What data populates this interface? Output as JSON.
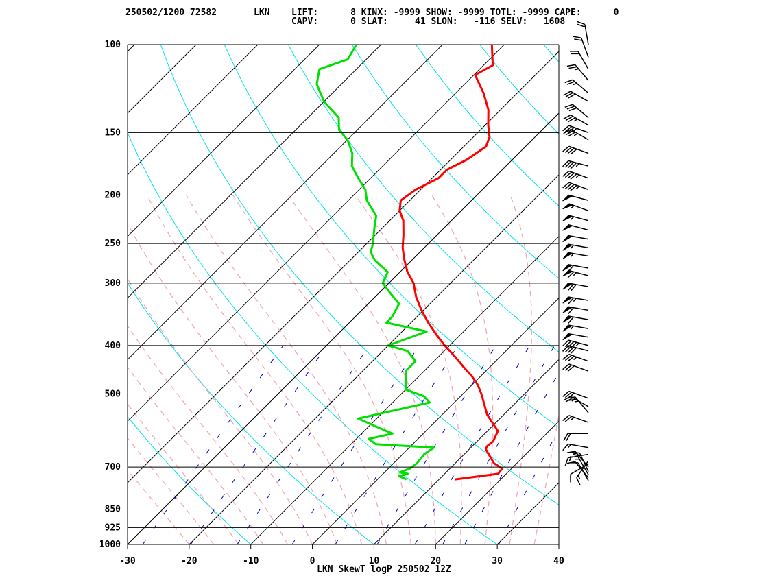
{
  "header": {
    "date_station": "250502/1200 72582",
    "station_id": "LKN",
    "line1": "LIFT:      8 KINX: -9999 SHOW: -9999 TOTL: -9999 CAPE:      0",
    "line2": "CAPV:      0 SLAT:     41 SLON:   -116 SELV:   1608"
  },
  "chart_data": {
    "type": "line",
    "title": "LKN SkewT logP 250502 12Z",
    "x_ticks": [
      -30,
      -20,
      -10,
      0,
      10,
      20,
      30,
      40
    ],
    "xlim": [
      -30,
      40
    ],
    "y_ticks": [
      100,
      150,
      200,
      250,
      300,
      400,
      500,
      700,
      850,
      925,
      1000
    ],
    "ylim": [
      1000,
      100
    ],
    "y_scale": "log",
    "skew": true,
    "colors": {
      "temperature": "#ff0000",
      "dewpoint": "#00e000",
      "dry_adiabats": "#00e6e6",
      "moist_adiabats": "#f4a8b4",
      "mixing_ratio": "#0000cc",
      "isotherms": "#000000",
      "isobars": "#000000",
      "wind_barbs": "#000000"
    },
    "series": [
      {
        "key": "temperature",
        "points": [
          [
            741,
            12.6
          ],
          [
            722,
            18.7
          ],
          [
            717,
            18.6
          ],
          [
            705,
            18.5
          ],
          [
            688,
            16.3
          ],
          [
            645,
            12.7
          ],
          [
            636,
            12.4
          ],
          [
            622,
            12.6
          ],
          [
            593,
            11.7
          ],
          [
            550,
            7.3
          ],
          [
            500,
            3.0
          ],
          [
            480,
            1.0
          ],
          [
            460,
            -1.5
          ],
          [
            440,
            -4.5
          ],
          [
            420,
            -7.5
          ],
          [
            400,
            -10.8
          ],
          [
            380,
            -14.0
          ],
          [
            360,
            -17.2
          ],
          [
            340,
            -20.3
          ],
          [
            320,
            -23.3
          ],
          [
            300,
            -26.0
          ],
          [
            285,
            -28.8
          ],
          [
            270,
            -31.2
          ],
          [
            255,
            -33.5
          ],
          [
            240,
            -35.5
          ],
          [
            225,
            -37.8
          ],
          [
            215,
            -40.0
          ],
          [
            205,
            -41.5
          ],
          [
            195,
            -40.8
          ],
          [
            185,
            -39.0
          ],
          [
            178,
            -39.0
          ],
          [
            170,
            -37.4
          ],
          [
            160,
            -36.4
          ],
          [
            153,
            -37.4
          ],
          [
            145,
            -39.5
          ],
          [
            135,
            -42.0
          ],
          [
            125,
            -45.5
          ],
          [
            115,
            -49.8
          ],
          [
            110,
            -48.5
          ],
          [
            100,
            -52.0
          ]
        ]
      },
      {
        "key": "dewpoint",
        "points": [
          [
            741,
            4.7
          ],
          [
            730,
            3.0
          ],
          [
            722,
            4.0
          ],
          [
            717,
            2.5
          ],
          [
            705,
            3.5
          ],
          [
            688,
            3.8
          ],
          [
            660,
            3.5
          ],
          [
            640,
            4.0
          ],
          [
            630,
            -6.0
          ],
          [
            615,
            -8.0
          ],
          [
            600,
            -5.0
          ],
          [
            580,
            -9.0
          ],
          [
            560,
            -13.0
          ],
          [
            520,
            -4.0
          ],
          [
            505,
            -6.0
          ],
          [
            490,
            -10.0
          ],
          [
            450,
            -13.0
          ],
          [
            430,
            -13.0
          ],
          [
            410,
            -16.0
          ],
          [
            400,
            -20.0
          ],
          [
            375,
            -16.0
          ],
          [
            360,
            -24.0
          ],
          [
            350,
            -24.0
          ],
          [
            330,
            -25.0
          ],
          [
            310,
            -29.0
          ],
          [
            300,
            -31.0
          ],
          [
            285,
            -32.0
          ],
          [
            270,
            -36.0
          ],
          [
            260,
            -38.0
          ],
          [
            250,
            -39.0
          ],
          [
            235,
            -41.0
          ],
          [
            220,
            -43.0
          ],
          [
            205,
            -47.0
          ],
          [
            195,
            -49.0
          ],
          [
            185,
            -52.0
          ],
          [
            175,
            -55.0
          ],
          [
            165,
            -57.0
          ],
          [
            155,
            -60.0
          ],
          [
            148,
            -63.0
          ],
          [
            140,
            -65.0
          ],
          [
            130,
            -70.0
          ],
          [
            120,
            -74.0
          ],
          [
            112,
            -76.0
          ],
          [
            107,
            -73.0
          ],
          [
            100,
            -74.0
          ]
        ]
      }
    ],
    "winds": [
      [
        745,
        330,
        10
      ],
      [
        735,
        320,
        10
      ],
      [
        725,
        330,
        15
      ],
      [
        715,
        335,
        20
      ],
      [
        700,
        320,
        15
      ],
      [
        690,
        240,
        10
      ],
      [
        680,
        215,
        15
      ],
      [
        660,
        260,
        15
      ],
      [
        640,
        280,
        15
      ],
      [
        600,
        270,
        20
      ],
      [
        570,
        290,
        25
      ],
      [
        545,
        320,
        25
      ],
      [
        530,
        300,
        25
      ],
      [
        510,
        290,
        30
      ],
      [
        450,
        290,
        30
      ],
      [
        430,
        290,
        35
      ],
      [
        410,
        285,
        40
      ],
      [
        400,
        285,
        45
      ],
      [
        385,
        280,
        50
      ],
      [
        370,
        280,
        55
      ],
      [
        355,
        280,
        60
      ],
      [
        340,
        280,
        60
      ],
      [
        325,
        280,
        65
      ],
      [
        305,
        280,
        70
      ],
      [
        290,
        285,
        65
      ],
      [
        280,
        280,
        60
      ],
      [
        265,
        280,
        55
      ],
      [
        255,
        280,
        55
      ],
      [
        245,
        280,
        50
      ],
      [
        235,
        285,
        50
      ],
      [
        225,
        285,
        55
      ],
      [
        215,
        290,
        55
      ],
      [
        205,
        285,
        50
      ],
      [
        195,
        290,
        45
      ],
      [
        185,
        290,
        45
      ],
      [
        175,
        285,
        45
      ],
      [
        165,
        290,
        40
      ],
      [
        155,
        300,
        35
      ],
      [
        150,
        290,
        35
      ],
      [
        145,
        300,
        35
      ],
      [
        140,
        310,
        30
      ],
      [
        130,
        300,
        30
      ],
      [
        125,
        310,
        25
      ],
      [
        118,
        320,
        25
      ],
      [
        112,
        330,
        20
      ],
      [
        106,
        340,
        20
      ],
      [
        100,
        350,
        20
      ]
    ]
  }
}
